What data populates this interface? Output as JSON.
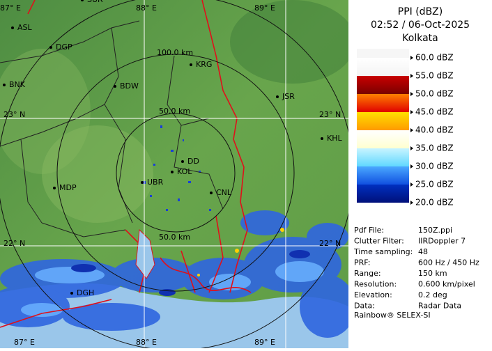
{
  "header": {
    "title": "PPI (dBZ)",
    "time": "02:52 / 06-Oct-2025",
    "site": "Kolkata"
  },
  "map": {
    "ring_labels": [
      "100.0 km",
      "50.0 km",
      "50.0 km"
    ],
    "lon_top": [
      "87° E",
      "88° E",
      "89° E"
    ],
    "lon_bottom": [
      "87° E",
      "88° E",
      "89° E"
    ],
    "lat_left": [
      "23° N",
      "22° N"
    ],
    "lat_right": [
      "23° N",
      "22° N"
    ],
    "cities": [
      "SUR",
      "ASL",
      "DGP",
      "BNK",
      "BDW",
      "KRG",
      "JSR",
      "KHL",
      "DD",
      "KOL",
      "UBR",
      "CNL",
      "MDP",
      "DGH"
    ]
  },
  "legend": {
    "labels": [
      "60.0 dBZ",
      "55.0 dBZ",
      "50.0 dBZ",
      "45.0 dBZ",
      "40.0 dBZ",
      "35.0 dBZ",
      "30.0 dBZ",
      "25.0 dBZ",
      "20.0 dBZ"
    ],
    "colors": [
      [
        "#f4f4f4",
        "#ffffff"
      ],
      [
        "#7a0000",
        "#c80000"
      ],
      [
        "#e00000",
        "#ff8000"
      ],
      [
        "#ff9a00",
        "#ffe000"
      ],
      [
        "#ffffd0",
        "#ffffff"
      ],
      [
        "#60d8ff",
        "#c8f4ff"
      ],
      [
        "#1050e0",
        "#4aa8ff"
      ],
      [
        "#00107a",
        "#0030c0"
      ]
    ]
  },
  "info": {
    "rows": [
      [
        "Pdf File:",
        "150Z.ppi"
      ],
      [
        "Clutter Filter:",
        "IIRDoppler 7"
      ],
      [
        "Time sampling:",
        "48"
      ],
      [
        "PRF:",
        "600 Hz / 450 Hz"
      ],
      [
        "Range:",
        "150 km"
      ],
      [
        "Resolution:",
        "0.600 km/pixel"
      ],
      [
        "Elevation:",
        "0.2 deg"
      ],
      [
        "Data:",
        "Radar Data"
      ]
    ],
    "footer": "Rainbow® SELEX-SI"
  }
}
